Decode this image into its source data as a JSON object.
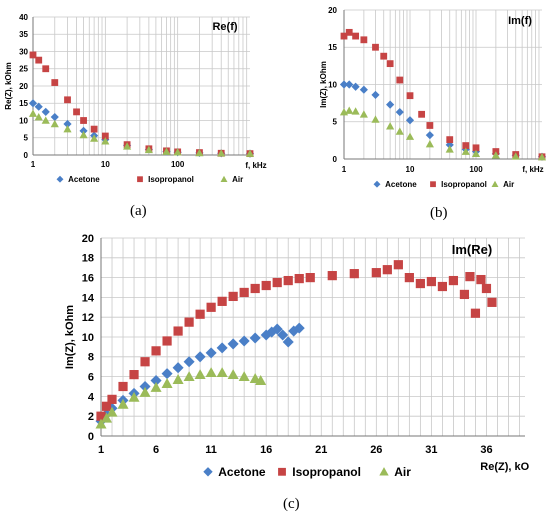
{
  "colors": {
    "acetone": "#4a7fc7",
    "isopropanol": "#c64444",
    "air": "#9bbb59",
    "grid": "#c8c8c8",
    "axis": "#777777"
  },
  "captions": {
    "a": "(a)",
    "b": "(b)",
    "c": "(c)"
  },
  "chart_data": [
    {
      "id": "a",
      "type": "scatter",
      "title": "Re(f)",
      "xlabel": "f, kHz",
      "ylabel": "Re(Z), kOhm",
      "x_scale": "log",
      "xlim": [
        1,
        1000
      ],
      "ylim": [
        0,
        40
      ],
      "x_ticks": [
        1,
        10,
        100
      ],
      "x_tick_labels": [
        "1",
        "10",
        "100"
      ],
      "y_ticks": [
        0,
        5,
        10,
        15,
        20,
        25,
        30,
        35,
        40
      ],
      "grid": true,
      "legend": "bottom",
      "series": [
        {
          "name": "Acetone",
          "marker": "diamond",
          "points": [
            [
              1,
              15
            ],
            [
              1.2,
              14
            ],
            [
              1.5,
              12.5
            ],
            [
              2,
              11
            ],
            [
              3,
              9
            ],
            [
              5,
              7
            ],
            [
              7,
              5.6
            ],
            [
              10,
              4.5
            ],
            [
              20,
              2.8
            ],
            [
              40,
              1.6
            ],
            [
              70,
              1
            ],
            [
              100,
              0.8
            ],
            [
              200,
              0.6
            ],
            [
              400,
              0.5
            ],
            [
              1000,
              0.4
            ]
          ]
        },
        {
          "name": "Isopropanol",
          "marker": "square",
          "points": [
            [
              1,
              29
            ],
            [
              1.2,
              27.5
            ],
            [
              1.5,
              25
            ],
            [
              2,
              21
            ],
            [
              3,
              16
            ],
            [
              4,
              12.5
            ],
            [
              5,
              10
            ],
            [
              7,
              7.5
            ],
            [
              10,
              5.5
            ],
            [
              20,
              3
            ],
            [
              40,
              1.8
            ],
            [
              70,
              1.2
            ],
            [
              100,
              0.9
            ],
            [
              200,
              0.7
            ],
            [
              400,
              0.5
            ],
            [
              1000,
              0.4
            ]
          ]
        },
        {
          "name": "Air",
          "marker": "triangle",
          "points": [
            [
              1,
              12
            ],
            [
              1.2,
              11
            ],
            [
              1.5,
              10
            ],
            [
              2,
              9
            ],
            [
              3,
              7.5
            ],
            [
              5,
              5.8
            ],
            [
              7,
              4.8
            ],
            [
              10,
              4
            ],
            [
              20,
              2.5
            ],
            [
              40,
              1.5
            ],
            [
              70,
              1
            ],
            [
              100,
              0.8
            ],
            [
              200,
              0.6
            ],
            [
              400,
              0.5
            ],
            [
              1000,
              0.4
            ]
          ]
        }
      ]
    },
    {
      "id": "b",
      "type": "scatter",
      "title": "Im(f)",
      "xlabel": "f, kHz",
      "ylabel": "Im(Z), kOhm",
      "x_scale": "log",
      "xlim": [
        1,
        1000
      ],
      "ylim": [
        0,
        20
      ],
      "x_ticks": [
        1,
        10,
        100
      ],
      "x_tick_labels": [
        "1",
        "10",
        "100"
      ],
      "y_ticks": [
        0,
        5,
        10,
        15,
        20
      ],
      "grid": true,
      "legend": "bottom",
      "series": [
        {
          "name": "Acetone",
          "marker": "diamond",
          "points": [
            [
              1,
              10
            ],
            [
              1.2,
              10
            ],
            [
              1.5,
              9.7
            ],
            [
              2,
              9.3
            ],
            [
              3,
              8.6
            ],
            [
              5,
              7.3
            ],
            [
              7,
              6.3
            ],
            [
              10,
              5.2
            ],
            [
              20,
              3.2
            ],
            [
              40,
              1.9
            ],
            [
              70,
              1.3
            ],
            [
              100,
              1
            ],
            [
              200,
              0.7
            ],
            [
              400,
              0.5
            ],
            [
              1000,
              0.3
            ]
          ]
        },
        {
          "name": "Isopropanol",
          "marker": "square",
          "points": [
            [
              1,
              16.5
            ],
            [
              1.2,
              17
            ],
            [
              1.5,
              16.5
            ],
            [
              2,
              16
            ],
            [
              3,
              15
            ],
            [
              4,
              13.8
            ],
            [
              5,
              12.8
            ],
            [
              7,
              10.6
            ],
            [
              10,
              8.5
            ],
            [
              15,
              6
            ],
            [
              20,
              4.5
            ],
            [
              40,
              2.6
            ],
            [
              70,
              1.8
            ],
            [
              100,
              1.5
            ],
            [
              200,
              1
            ],
            [
              400,
              0.6
            ],
            [
              1000,
              0.3
            ]
          ]
        },
        {
          "name": "Air",
          "marker": "triangle",
          "points": [
            [
              1,
              6.3
            ],
            [
              1.2,
              6.5
            ],
            [
              1.5,
              6.4
            ],
            [
              2,
              6
            ],
            [
              3,
              5.3
            ],
            [
              5,
              4.4
            ],
            [
              7,
              3.7
            ],
            [
              10,
              3
            ],
            [
              20,
              2
            ],
            [
              40,
              1.3
            ],
            [
              70,
              1
            ],
            [
              100,
              0.7
            ],
            [
              200,
              0.5
            ],
            [
              400,
              0.35
            ],
            [
              1000,
              0.25
            ]
          ]
        }
      ]
    },
    {
      "id": "c",
      "type": "scatter",
      "title": "Im(Re)",
      "xlabel": "Re(Z), kOhm",
      "ylabel": "Im(Z), kOhm",
      "xlim": [
        1,
        39.5
      ],
      "ylim": [
        0,
        20
      ],
      "x_ticks": [
        1,
        6,
        11,
        16,
        21,
        26,
        31,
        36
      ],
      "y_ticks": [
        0,
        2,
        4,
        6,
        8,
        10,
        12,
        14,
        16,
        18,
        20
      ],
      "grid": true,
      "legend": "bottom",
      "series": [
        {
          "name": "Acetone",
          "marker": "diamond",
          "points": [
            [
              1,
              1.5
            ],
            [
              1.5,
              2.2
            ],
            [
              2,
              2.8
            ],
            [
              3,
              3.6
            ],
            [
              4,
              4.3
            ],
            [
              5,
              5
            ],
            [
              6,
              5.6
            ],
            [
              7,
              6.3
            ],
            [
              8,
              6.9
            ],
            [
              9,
              7.5
            ],
            [
              10,
              8
            ],
            [
              11,
              8.4
            ],
            [
              12,
              8.9
            ],
            [
              13,
              9.3
            ],
            [
              14,
              9.6
            ],
            [
              15,
              9.9
            ],
            [
              16,
              10.2
            ],
            [
              16.5,
              10.5
            ],
            [
              17,
              10.8
            ],
            [
              17.5,
              10.2
            ],
            [
              18,
              9.5
            ],
            [
              18.5,
              10.6
            ],
            [
              19,
              10.9
            ]
          ]
        },
        {
          "name": "Isopropanol",
          "marker": "square",
          "points": [
            [
              1,
              2
            ],
            [
              1.5,
              3
            ],
            [
              2,
              3.7
            ],
            [
              3,
              5
            ],
            [
              4,
              6.2
            ],
            [
              5,
              7.5
            ],
            [
              6,
              8.6
            ],
            [
              7,
              9.6
            ],
            [
              8,
              10.6
            ],
            [
              9,
              11.5
            ],
            [
              10,
              12.3
            ],
            [
              11,
              13
            ],
            [
              12,
              13.6
            ],
            [
              13,
              14.1
            ],
            [
              14,
              14.5
            ],
            [
              15,
              14.9
            ],
            [
              16,
              15.2
            ],
            [
              17,
              15.5
            ],
            [
              18,
              15.7
            ],
            [
              19,
              15.9
            ],
            [
              20,
              16
            ],
            [
              22,
              16.2
            ],
            [
              24,
              16.4
            ],
            [
              26,
              16.5
            ],
            [
              27,
              16.8
            ],
            [
              28,
              17.3
            ],
            [
              29,
              16
            ],
            [
              30,
              15.4
            ],
            [
              31,
              15.6
            ],
            [
              32,
              15.1
            ],
            [
              33,
              15.7
            ],
            [
              34,
              14.3
            ],
            [
              34.5,
              16.1
            ],
            [
              35,
              12.4
            ],
            [
              35.5,
              15.8
            ],
            [
              36,
              14.9
            ],
            [
              36.5,
              13.5
            ]
          ]
        },
        {
          "name": "Air",
          "marker": "triangle",
          "points": [
            [
              1,
              1.2
            ],
            [
              1.5,
              1.8
            ],
            [
              2,
              2.4
            ],
            [
              3,
              3.2
            ],
            [
              4,
              3.9
            ],
            [
              5,
              4.4
            ],
            [
              6,
              4.9
            ],
            [
              7,
              5.3
            ],
            [
              8,
              5.7
            ],
            [
              9,
              6
            ],
            [
              10,
              6.2
            ],
            [
              11,
              6.4
            ],
            [
              12,
              6.4
            ],
            [
              13,
              6.2
            ],
            [
              14,
              6
            ],
            [
              15,
              5.8
            ],
            [
              15.5,
              5.6
            ]
          ]
        }
      ]
    }
  ]
}
